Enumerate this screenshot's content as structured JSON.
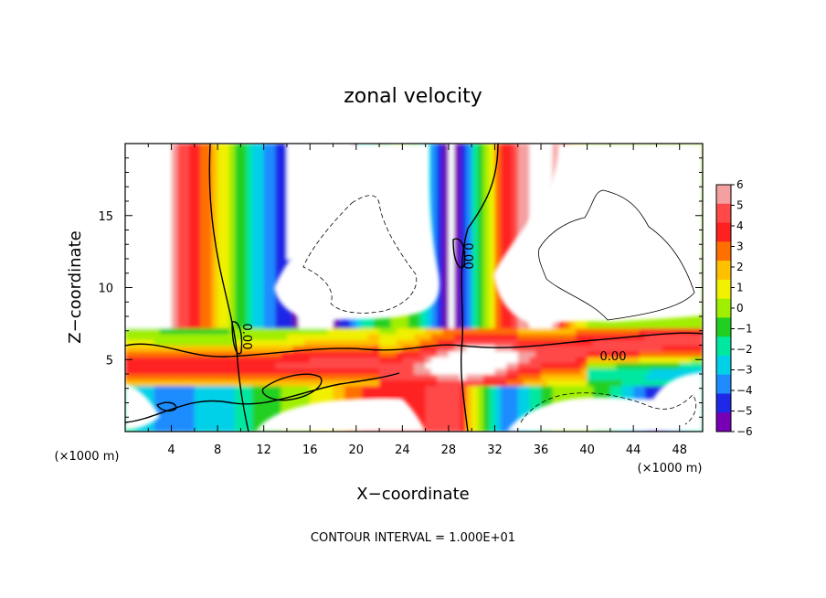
{
  "chart_data": {
    "type": "heatmap",
    "title": "zonal velocity",
    "xlabel": "X−coordinate",
    "ylabel": "Z−coordinate",
    "x_unit": "(×1000 m)",
    "x_unit_right": "(×1000 m)",
    "xlim": [
      0,
      50
    ],
    "ylim": [
      0,
      20
    ],
    "x_ticks": [
      "4",
      "8",
      "12",
      "16",
      "20",
      "24",
      "28",
      "32",
      "36",
      "40",
      "44",
      "48"
    ],
    "y_ticks": [
      "5",
      "10",
      "15"
    ],
    "colorbar": {
      "range": [
        -6,
        6
      ],
      "labels": [
        "6",
        "5",
        "4",
        "3",
        "2",
        "1",
        "0",
        "−1",
        "−2",
        "−3",
        "−4",
        "−5",
        "−6"
      ],
      "colors": [
        "#f4a0a0",
        "#ff4848",
        "#ff2020",
        "#ff7000",
        "#ffc000",
        "#f0f000",
        "#a0ee00",
        "#20d020",
        "#00e8a0",
        "#00d0e8",
        "#1e8cff",
        "#1e28e6",
        "#7800b4"
      ]
    },
    "contour_labels": [
      "0.00",
      "0.00",
      "0.00"
    ],
    "footer": "CONTOUR INTERVAL = 1.000E+01",
    "grid": false
  }
}
